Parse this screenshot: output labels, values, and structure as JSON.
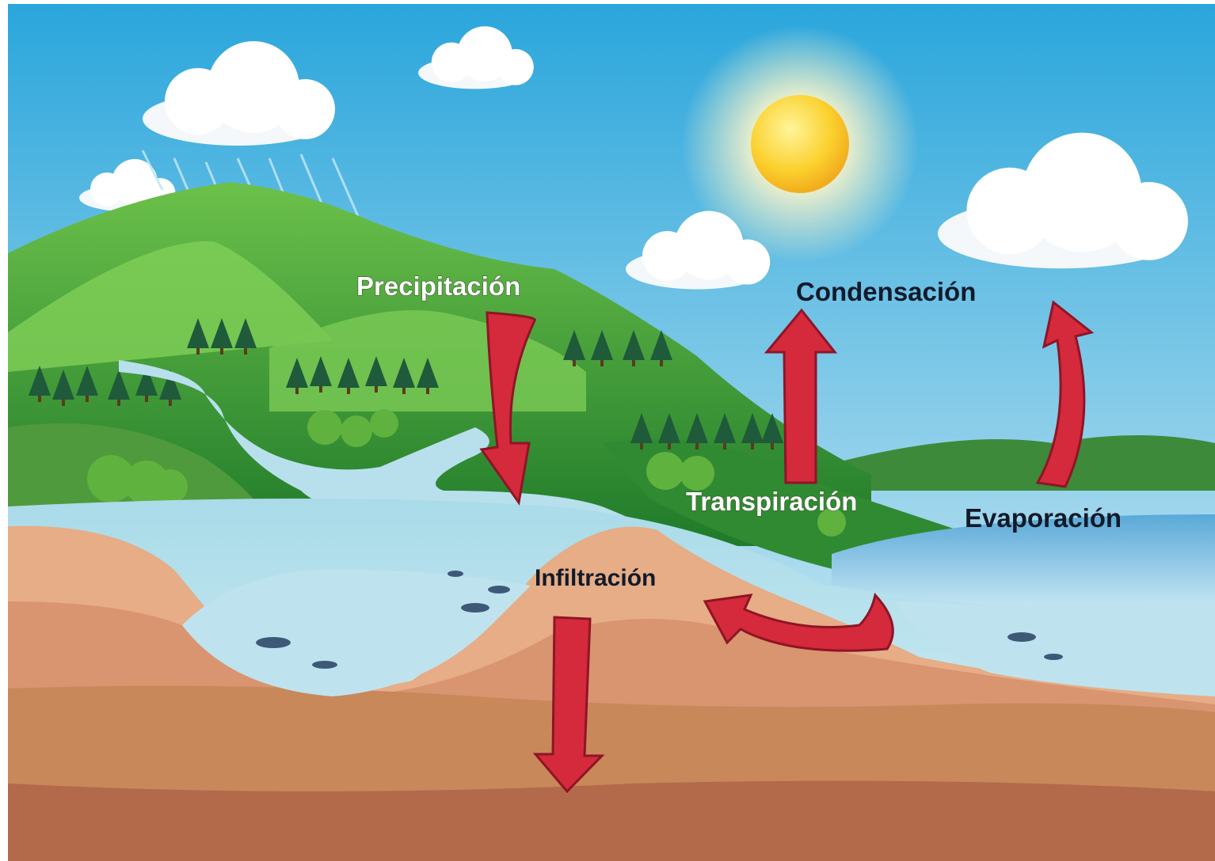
{
  "labels": [
    "Precipitación",
    "Condensación",
    "Transpiración",
    "Evaporación",
    "Infiltración"
  ]
}
